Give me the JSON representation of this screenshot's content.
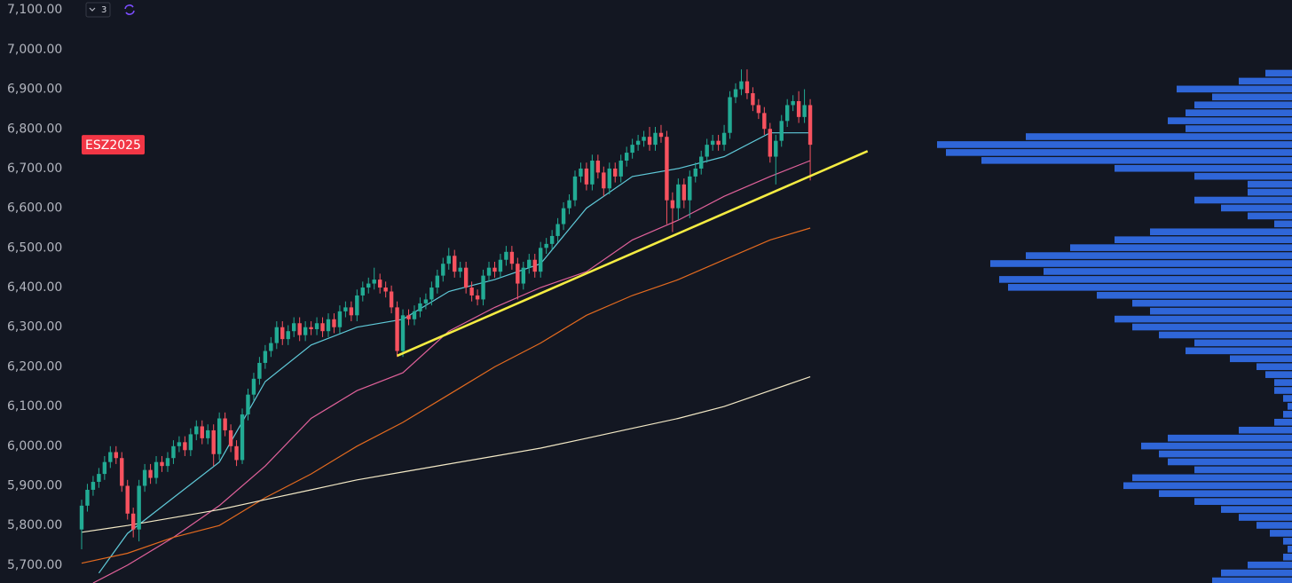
{
  "chart_data": {
    "type": "candlestick",
    "symbol": "ESZ2025",
    "badge": "3",
    "up_color": "#22ab94",
    "down_color": "#f7525f",
    "ylim": [
      5655,
      7125
    ],
    "yticks": [
      {
        "value": 5700,
        "label": "5,700.00"
      },
      {
        "value": 5800,
        "label": "5,800.00"
      },
      {
        "value": 5900,
        "label": "5,900.00"
      },
      {
        "value": 6000,
        "label": "6,000.00"
      },
      {
        "value": 6100,
        "label": "6,100.00"
      },
      {
        "value": 6200,
        "label": "6,200.00"
      },
      {
        "value": 6300,
        "label": "6,300.00"
      },
      {
        "value": 6400,
        "label": "6,400.00"
      },
      {
        "value": 6500,
        "label": "6,500.00"
      },
      {
        "value": 6600,
        "label": "6,600.00"
      },
      {
        "value": 6700,
        "label": "6,700.00"
      },
      {
        "value": 6800,
        "label": "6,800.00"
      },
      {
        "value": 6900,
        "label": "6,900.00"
      },
      {
        "value": 7000,
        "label": "7,000.00"
      },
      {
        "value": 7100,
        "label": "7,100.00"
      }
    ],
    "open": [
      5790,
      5850,
      5890,
      5910,
      5930,
      5960,
      5985,
      5970,
      5900,
      5830,
      5790,
      5900,
      5940,
      5920,
      5960,
      5950,
      5970,
      6000,
      6010,
      5990,
      6030,
      6050,
      6020,
      6040,
      5980,
      6070,
      6040,
      6000,
      5965,
      6080,
      6130,
      6170,
      6210,
      6240,
      6260,
      6300,
      6270,
      6290,
      6310,
      6280,
      6300,
      6295,
      6310,
      6290,
      6320,
      6300,
      6340,
      6350,
      6330,
      6380,
      6400,
      6410,
      6420,
      6400,
      6390,
      6350,
      6240,
      6330,
      6320,
      6340,
      6360,
      6370,
      6400,
      6430,
      6460,
      6480,
      6440,
      6450,
      6400,
      6380,
      6370,
      6430,
      6450,
      6440,
      6470,
      6490,
      6460,
      6410,
      6450,
      6470,
      6440,
      6500,
      6510,
      6530,
      6560,
      6600,
      6620,
      6680,
      6700,
      6660,
      6720,
      6690,
      6650,
      6700,
      6680,
      6720,
      6740,
      6760,
      6770,
      6780,
      6760,
      6790,
      6780,
      6620,
      6600,
      6660,
      6620,
      6680,
      6700,
      6730,
      6760,
      6770,
      6760,
      6790,
      6880,
      6900,
      6920,
      6890,
      6860,
      6840,
      6800,
      6730,
      6770,
      6820,
      6860,
      6870,
      6830,
      6860
    ],
    "high": [
      5865,
      5905,
      5925,
      5945,
      5975,
      6000,
      6000,
      5985,
      5915,
      5845,
      5915,
      5955,
      5955,
      5975,
      5975,
      5985,
      6015,
      6025,
      6025,
      6045,
      6065,
      6065,
      6055,
      6055,
      6085,
      6085,
      6055,
      6015,
      6095,
      6145,
      6185,
      6225,
      6255,
      6275,
      6315,
      6315,
      6305,
      6325,
      6325,
      6315,
      6315,
      6325,
      6325,
      6335,
      6335,
      6355,
      6365,
      6365,
      6395,
      6415,
      6425,
      6450,
      6435,
      6415,
      6405,
      6365,
      6345,
      6345,
      6355,
      6375,
      6385,
      6415,
      6445,
      6475,
      6500,
      6495,
      6465,
      6465,
      6415,
      6395,
      6445,
      6465,
      6465,
      6485,
      6505,
      6505,
      6475,
      6465,
      6485,
      6485,
      6515,
      6525,
      6545,
      6575,
      6615,
      6635,
      6695,
      6715,
      6715,
      6735,
      6735,
      6705,
      6715,
      6715,
      6735,
      6755,
      6775,
      6785,
      6795,
      6805,
      6805,
      6810,
      6795,
      6640,
      6675,
      6675,
      6695,
      6715,
      6745,
      6775,
      6785,
      6785,
      6810,
      6895,
      6915,
      6950,
      6950,
      6905,
      6875,
      6855,
      6815,
      6785,
      6835,
      6875,
      6885,
      6895,
      6900,
      6875
    ],
    "low": [
      5740,
      5835,
      5875,
      5895,
      5915,
      5945,
      5955,
      5885,
      5815,
      5770,
      5760,
      5885,
      5905,
      5905,
      5935,
      5935,
      5955,
      5985,
      5975,
      5975,
      6015,
      6005,
      6005,
      5950,
      5965,
      6025,
      5985,
      5950,
      5955,
      6065,
      6115,
      6155,
      6195,
      6225,
      6245,
      6255,
      6255,
      6275,
      6265,
      6265,
      6280,
      6280,
      6275,
      6275,
      6285,
      6285,
      6325,
      6315,
      6315,
      6365,
      6385,
      6395,
      6385,
      6375,
      6335,
      6225,
      6225,
      6305,
      6305,
      6325,
      6345,
      6355,
      6385,
      6415,
      6445,
      6425,
      6425,
      6385,
      6365,
      6355,
      6355,
      6415,
      6425,
      6425,
      6455,
      6445,
      6370,
      6395,
      6435,
      6425,
      6425,
      6485,
      6495,
      6515,
      6545,
      6585,
      6605,
      6665,
      6645,
      6645,
      6675,
      6630,
      6635,
      6665,
      6665,
      6705,
      6725,
      6745,
      6755,
      6745,
      6745,
      6765,
      6560,
      6540,
      6570,
      6600,
      6575,
      6665,
      6685,
      6715,
      6745,
      6745,
      6745,
      6775,
      6865,
      6885,
      6875,
      6845,
      6825,
      6785,
      6715,
      6660,
      6755,
      6805,
      6845,
      6815,
      6815,
      6670
    ],
    "close": [
      5850,
      5890,
      5910,
      5930,
      5960,
      5985,
      5970,
      5900,
      5830,
      5790,
      5900,
      5940,
      5920,
      5960,
      5950,
      5970,
      6000,
      6010,
      5990,
      6030,
      6050,
      6020,
      6040,
      5980,
      6070,
      6040,
      6000,
      5965,
      6080,
      6130,
      6170,
      6210,
      6240,
      6260,
      6300,
      6270,
      6290,
      6310,
      6280,
      6300,
      6295,
      6310,
      6290,
      6320,
      6300,
      6340,
      6350,
      6330,
      6380,
      6400,
      6410,
      6420,
      6400,
      6390,
      6350,
      6240,
      6330,
      6320,
      6340,
      6360,
      6370,
      6400,
      6430,
      6460,
      6480,
      6440,
      6450,
      6400,
      6380,
      6370,
      6430,
      6450,
      6440,
      6470,
      6490,
      6460,
      6410,
      6450,
      6470,
      6440,
      6500,
      6510,
      6530,
      6560,
      6600,
      6620,
      6680,
      6700,
      6660,
      6720,
      6690,
      6650,
      6700,
      6680,
      6720,
      6740,
      6760,
      6770,
      6780,
      6760,
      6790,
      6780,
      6620,
      6600,
      6660,
      6620,
      6680,
      6700,
      6730,
      6760,
      6770,
      6760,
      6790,
      6880,
      6900,
      6920,
      6890,
      6860,
      6840,
      6800,
      6730,
      6770,
      6820,
      6860,
      6870,
      6830,
      6860,
      6760
    ],
    "ma_lines": [
      {
        "color": "#5fc9d8",
        "x": [
          3,
          8,
          16,
          24,
          32,
          40,
          48,
          56,
          64,
          72,
          80,
          88,
          96,
          104,
          112,
          120,
          127
        ],
        "values": [
          5680,
          5780,
          5870,
          5960,
          6163,
          6255,
          6300,
          6320,
          6390,
          6420,
          6460,
          6600,
          6680,
          6700,
          6730,
          6790,
          6790
        ]
      },
      {
        "color": "#e0619a",
        "x": [
          2,
          8,
          16,
          24,
          32,
          40,
          48,
          56,
          64,
          72,
          80,
          88,
          96,
          104,
          112,
          120,
          127
        ],
        "values": [
          5655,
          5700,
          5770,
          5850,
          5950,
          6070,
          6140,
          6185,
          6290,
          6350,
          6400,
          6440,
          6520,
          6570,
          6630,
          6680,
          6720
        ]
      },
      {
        "color": "#e36a1f",
        "x": [
          0,
          8,
          16,
          24,
          32,
          40,
          48,
          56,
          64,
          72,
          80,
          88,
          96,
          104,
          112,
          120,
          127
        ],
        "values": [
          5705,
          5730,
          5770,
          5800,
          5870,
          5930,
          6000,
          6060,
          6130,
          6200,
          6260,
          6330,
          6380,
          6420,
          6470,
          6520,
          6550
        ]
      },
      {
        "color": "#f3e9c6",
        "x": [
          0,
          8,
          16,
          24,
          32,
          40,
          48,
          56,
          64,
          72,
          80,
          88,
          96,
          104,
          112,
          120,
          127
        ],
        "values": [
          5783,
          5800,
          5820,
          5840,
          5865,
          5890,
          5915,
          5935,
          5955,
          5975,
          5995,
          6020,
          6045,
          6070,
          6100,
          6140,
          6175
        ]
      }
    ],
    "trendline": {
      "color": "#f5ec42",
      "x": [
        55,
        137
      ],
      "values": [
        6228,
        6744
      ]
    },
    "volume_profile": {
      "color": "#2f66d8",
      "prices": [
        6960,
        6940,
        6920,
        6900,
        6880,
        6860,
        6840,
        6820,
        6800,
        6780,
        6760,
        6740,
        6720,
        6700,
        6680,
        6660,
        6640,
        6620,
        6600,
        6580,
        6560,
        6540,
        6520,
        6500,
        6480,
        6460,
        6440,
        6420,
        6400,
        6380,
        6360,
        6340,
        6320,
        6300,
        6280,
        6260,
        6240,
        6220,
        6200,
        6180,
        6160,
        6140,
        6120,
        6100,
        6080,
        6060,
        6040,
        6020,
        6000,
        5980,
        5960,
        5940,
        5920,
        5900,
        5880,
        5860,
        5840,
        5820,
        5800,
        5780,
        5760,
        5740,
        5720,
        5700,
        5680,
        5660
      ],
      "volumes": [
        0,
        30,
        60,
        130,
        90,
        110,
        120,
        140,
        120,
        300,
        400,
        390,
        350,
        200,
        110,
        50,
        50,
        110,
        80,
        50,
        20,
        160,
        200,
        250,
        300,
        340,
        280,
        330,
        320,
        220,
        180,
        160,
        200,
        180,
        150,
        110,
        120,
        70,
        40,
        30,
        20,
        20,
        10,
        5,
        10,
        20,
        60,
        140,
        170,
        150,
        140,
        110,
        180,
        190,
        150,
        110,
        80,
        60,
        40,
        25,
        10,
        5,
        10,
        50,
        80,
        90
      ]
    }
  }
}
